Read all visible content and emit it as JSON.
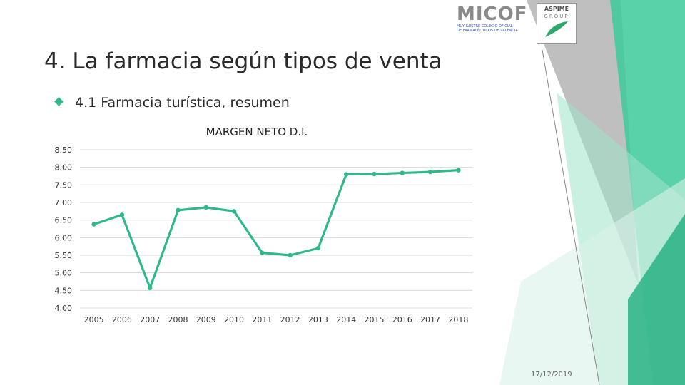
{
  "slide": {
    "title": "4. La farmacia según tipos de venta",
    "bullet": "4.1 Farmacia turística, resumen",
    "date": "17/12/2019"
  },
  "logos": {
    "micof_name": "MICOF",
    "micof_sub_line1": "MUY ILUSTRE COLEGIO OFICIAL",
    "micof_sub_line2": "DE FARMACÉUTICOS DE VALENCIA",
    "aspime_line1": "ASPIME",
    "aspime_line2": "GROUP"
  },
  "colors": {
    "accent": "#2fb88c",
    "series": "#2fb88c",
    "grid": "#d9d9d9"
  },
  "chart_data": {
    "type": "line",
    "title": "MARGEN NETO D.I.",
    "categories": [
      "2005",
      "2006",
      "2007",
      "2008",
      "2009",
      "2010",
      "2011",
      "2012",
      "2013",
      "2014",
      "2015",
      "2016",
      "2017",
      "2018"
    ],
    "series": [
      {
        "values": [
          6.38,
          6.65,
          4.57,
          6.78,
          6.86,
          6.75,
          5.57,
          5.5,
          5.7,
          7.8,
          7.81,
          7.84,
          7.87,
          7.92
        ]
      }
    ],
    "ylim": [
      4.0,
      8.5
    ],
    "yticks": [
      "4.00",
      "4.50",
      "5.00",
      "5.50",
      "6.00",
      "6.50",
      "7.00",
      "7.50",
      "8.00",
      "8.50"
    ],
    "grid": true,
    "legend": "none"
  }
}
